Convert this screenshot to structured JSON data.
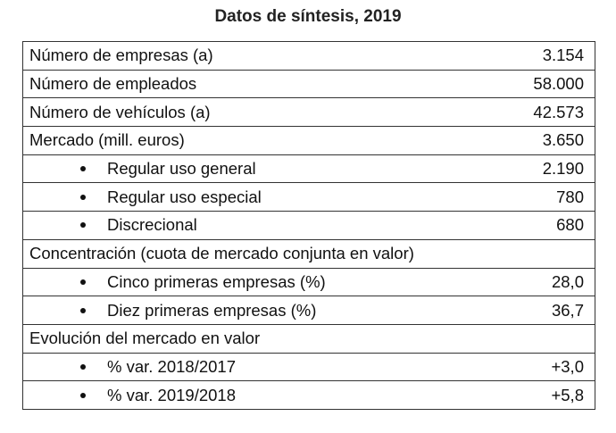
{
  "title": "Datos de síntesis, 2019",
  "rows": [
    {
      "label": "Número de empresas (a)",
      "value": "3.154"
    },
    {
      "label": "Número de empleados",
      "value": "58.000"
    },
    {
      "label": "Número de vehículos (a)",
      "value": "42.573"
    },
    {
      "label": "Mercado (mill. euros)",
      "value": "3.650"
    },
    {
      "label": "Regular uso general",
      "value": "2.190"
    },
    {
      "label": "Regular uso especial",
      "value": "780"
    },
    {
      "label": "Discrecional",
      "value": "680"
    },
    {
      "label": "Concentración (cuota de mercado conjunta en valor)",
      "value": ""
    },
    {
      "label": "Cinco primeras empresas (%)",
      "value": "28,0"
    },
    {
      "label": "Diez primeras empresas (%)",
      "value": "36,7"
    },
    {
      "label": "Evolución del mercado en valor",
      "value": ""
    },
    {
      "label": "% var. 2018/2017",
      "value": "+3,0"
    },
    {
      "label": "% var. 2019/2018",
      "value": "+5,8"
    }
  ]
}
